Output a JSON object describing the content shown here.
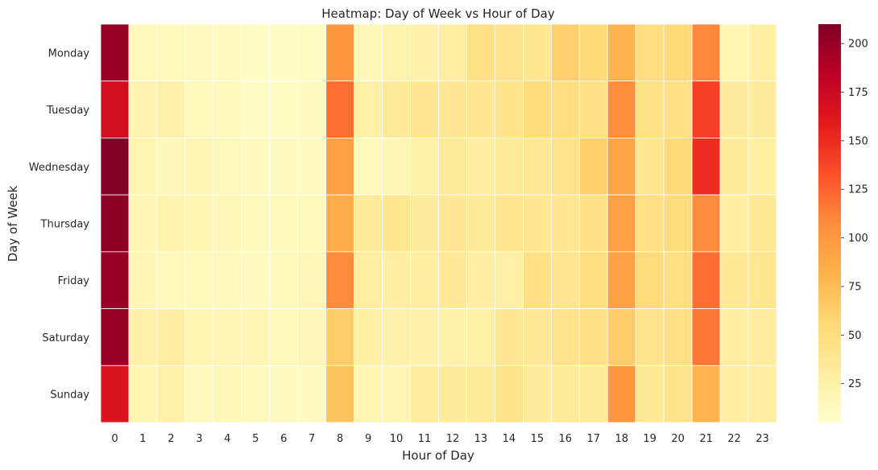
{
  "chart_data": {
    "type": "heatmap",
    "title": "Heatmap: Day of Week vs Hour of Day",
    "xlabel": "Hour of Day",
    "ylabel": "Day of Week",
    "x_categories": [
      "0",
      "1",
      "2",
      "3",
      "4",
      "5",
      "6",
      "7",
      "8",
      "9",
      "10",
      "11",
      "12",
      "13",
      "14",
      "15",
      "16",
      "17",
      "18",
      "19",
      "20",
      "21",
      "22",
      "23"
    ],
    "y_categories": [
      "Monday",
      "Tuesday",
      "Wednesday",
      "Thursday",
      "Friday",
      "Saturday",
      "Sunday"
    ],
    "values": [
      [
        200,
        15,
        14,
        12,
        12,
        9,
        9,
        10,
        100,
        17,
        24,
        25,
        30,
        47,
        42,
        40,
        62,
        55,
        82,
        50,
        55,
        110,
        20,
        27
      ],
      [
        170,
        22,
        25,
        15,
        14,
        11,
        11,
        12,
        120,
        26,
        35,
        38,
        38,
        38,
        42,
        52,
        50,
        47,
        106,
        45,
        46,
        140,
        33,
        33
      ],
      [
        210,
        20,
        16,
        18,
        15,
        12,
        12,
        12,
        95,
        15,
        19,
        26,
        34,
        30,
        34,
        37,
        43,
        63,
        90,
        40,
        55,
        150,
        35,
        27
      ],
      [
        205,
        19,
        22,
        20,
        17,
        14,
        15,
        15,
        85,
        34,
        40,
        33,
        38,
        34,
        41,
        38,
        40,
        47,
        95,
        47,
        52,
        108,
        30,
        36
      ],
      [
        200,
        18,
        14,
        15,
        13,
        12,
        13,
        16,
        108,
        30,
        28,
        30,
        36,
        29,
        26,
        47,
        41,
        50,
        93,
        53,
        49,
        120,
        36,
        40
      ],
      [
        200,
        26,
        30,
        20,
        19,
        18,
        15,
        16,
        65,
        27,
        25,
        25,
        25,
        26,
        39,
        37,
        43,
        46,
        65,
        42,
        48,
        116,
        30,
        31
      ],
      [
        165,
        20,
        26,
        12,
        17,
        13,
        12,
        12,
        70,
        20,
        18,
        32,
        33,
        35,
        44,
        33,
        34,
        34,
        100,
        37,
        43,
        80,
        28,
        30
      ]
    ],
    "colorbar": {
      "colormap": "YlOrRd",
      "vmin": 5,
      "vmax": 210,
      "ticks": [
        "25",
        "50",
        "75",
        "100",
        "125",
        "150",
        "175",
        "200"
      ]
    },
    "grid": false,
    "legend": "none"
  }
}
